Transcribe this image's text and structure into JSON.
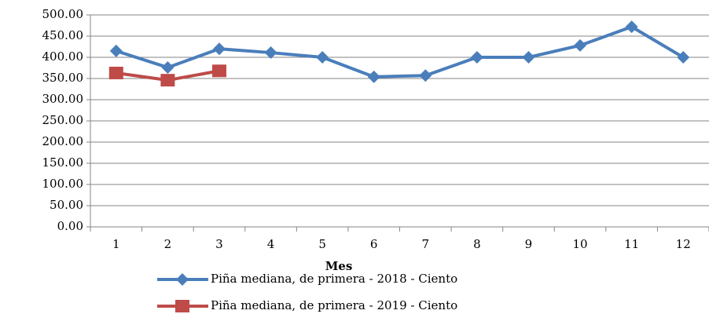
{
  "chart_data": {
    "type": "line",
    "x_label": "Mes",
    "categories": [
      "1",
      "2",
      "3",
      "4",
      "5",
      "6",
      "7",
      "8",
      "9",
      "10",
      "11",
      "12"
    ],
    "series": [
      {
        "name": "Piña mediana, de primera - 2018 - Ciento",
        "color": "#4a7ebb",
        "marker": "diamond",
        "values": [
          415,
          376,
          420,
          411,
          400,
          354,
          357,
          400,
          400,
          428,
          472,
          400
        ]
      },
      {
        "name": "Piña mediana, de primera - 2019 - Ciento",
        "color": "#be4b48",
        "marker": "square",
        "values": [
          363,
          346,
          368,
          null,
          null,
          null,
          null,
          null,
          null,
          null,
          null,
          null
        ]
      }
    ],
    "ylim": [
      0,
      500
    ],
    "yticks": [
      {
        "value": 0,
        "label": "0.00"
      },
      {
        "value": 50,
        "label": "50.00"
      },
      {
        "value": 100,
        "label": "100.00"
      },
      {
        "value": 150,
        "label": "150.00"
      },
      {
        "value": 200,
        "label": "200.00"
      },
      {
        "value": 250,
        "label": "250.00"
      },
      {
        "value": 300,
        "label": "300.00"
      },
      {
        "value": 350,
        "label": "350.00"
      },
      {
        "value": 400,
        "label": "400.00"
      },
      {
        "value": 450,
        "label": "450.00"
      },
      {
        "value": 500,
        "label": "500.00"
      }
    ],
    "grid": true
  }
}
